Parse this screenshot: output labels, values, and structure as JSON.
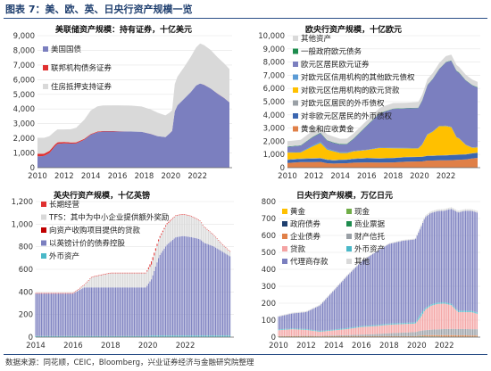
{
  "figure_title": "图表 7：美、欧、英、日央行资产规模一览",
  "source": "数据来源：同花顺，CEIC，Bloomberg，兴业证券经济与金融研究院整理",
  "chart_data": [
    {
      "id": "fed",
      "type": "area",
      "stacked": true,
      "title": "美联储资产规模：持有证券，十亿美元",
      "xlim": [
        2010,
        2024.6
      ],
      "ylim": [
        0,
        9000
      ],
      "x_ticks": [
        2010,
        2012,
        2014,
        2016,
        2018,
        2020,
        2022
      ],
      "y_ticks": [
        0,
        1000,
        2000,
        3000,
        4000,
        5000,
        6000,
        7000,
        8000,
        9000
      ],
      "legend_position": "top-left",
      "x": [
        2010.0,
        2010.25,
        2010.5,
        2010.9,
        2011.3,
        2011.5,
        2012.0,
        2012.5,
        2012.9,
        2013.5,
        2014.0,
        2014.5,
        2014.9,
        2016.0,
        2017.0,
        2017.8,
        2018.5,
        2019.0,
        2019.6,
        2019.9,
        2020.1,
        2020.3,
        2020.5,
        2021.0,
        2021.5,
        2021.9,
        2022.2,
        2022.5,
        2023.0,
        2023.5,
        2024.0,
        2024.4
      ],
      "series": [
        {
          "name": "美国国债",
          "color": "#7b7fbf",
          "values": [
            780,
            780,
            800,
            1000,
            1450,
            1620,
            1660,
            1640,
            1650,
            1900,
            2250,
            2420,
            2460,
            2460,
            2460,
            2450,
            2300,
            2150,
            2080,
            2320,
            2500,
            3850,
            4250,
            4700,
            5150,
            5600,
            5740,
            5650,
            5400,
            5050,
            4750,
            4450
          ]
        },
        {
          "name": "联邦机构债务证券",
          "color": "#e03030",
          "values": [
            160,
            160,
            155,
            150,
            120,
            110,
            100,
            80,
            75,
            60,
            45,
            40,
            38,
            30,
            5,
            3,
            3,
            3,
            3,
            3,
            3,
            3,
            3,
            3,
            3,
            3,
            3,
            3,
            3,
            3,
            3,
            3
          ]
        },
        {
          "name": "住房抵押支持证券",
          "color": "#d9d9d9",
          "values": [
            1100,
            1100,
            1080,
            1000,
            900,
            880,
            850,
            900,
            1000,
            1300,
            1600,
            1720,
            1740,
            1760,
            1770,
            1720,
            1660,
            1600,
            1480,
            1420,
            1400,
            1850,
            1950,
            2150,
            2400,
            2600,
            2720,
            2700,
            2620,
            2480,
            2360,
            2270
          ]
        }
      ]
    },
    {
      "id": "ecb",
      "type": "area",
      "stacked": true,
      "title": "欧央行资产规模，十亿欧元",
      "xlim": [
        2010,
        2024.6
      ],
      "ylim": [
        0,
        10000
      ],
      "x_ticks": [
        2010,
        2012,
        2014,
        2016,
        2018,
        2020,
        2022
      ],
      "y_ticks": [
        0,
        1000,
        2000,
        3000,
        4000,
        5000,
        6000,
        7000,
        8000,
        9000,
        10000
      ],
      "legend_position": "top-left",
      "x": [
        2010.0,
        2011.0,
        2011.9,
        2012.5,
        2013.0,
        2013.5,
        2014.0,
        2014.5,
        2015.0,
        2016.0,
        2017.0,
        2018.0,
        2019.0,
        2019.9,
        2020.2,
        2020.6,
        2021.0,
        2021.5,
        2022.0,
        2022.4,
        2022.8,
        2023.0,
        2023.5,
        2024.0,
        2024.4
      ],
      "series": [
        {
          "name": "黄金和应收黄金",
          "color": "#e08048",
          "values": [
            360,
            420,
            420,
            440,
            340,
            310,
            330,
            340,
            380,
            400,
            390,
            400,
            460,
            470,
            470,
            540,
            540,
            560,
            560,
            570,
            590,
            600,
            620,
            700,
            740
          ]
        },
        {
          "name": "对非欧元区居民的外币债权",
          "color": "#3b66b0",
          "values": [
            230,
            240,
            260,
            260,
            250,
            240,
            250,
            260,
            280,
            310,
            300,
            320,
            340,
            340,
            350,
            350,
            360,
            360,
            370,
            380,
            380,
            380,
            380,
            380,
            380
          ]
        },
        {
          "name": "对欧元区居民的外币债权",
          "color": "#9aa0a6",
          "values": [
            30,
            30,
            40,
            40,
            30,
            30,
            30,
            30,
            30,
            30,
            30,
            20,
            20,
            20,
            20,
            20,
            20,
            20,
            20,
            20,
            20,
            20,
            20,
            20,
            20
          ]
        },
        {
          "name": "对欧元区信用机构的欧元贷款",
          "color": "#ffc000",
          "values": [
            520,
            460,
            880,
            1130,
            750,
            650,
            500,
            480,
            540,
            590,
            770,
            730,
            640,
            620,
            900,
            1600,
            1800,
            2200,
            2200,
            2100,
            1300,
            1200,
            700,
            400,
            400
          ]
        },
        {
          "name": "对欧元区信用机构的其他欧元债权",
          "color": "#5b9bd5",
          "values": [
            30,
            40,
            80,
            100,
            80,
            70,
            60,
            50,
            40,
            30,
            30,
            30,
            30,
            30,
            30,
            30,
            30,
            30,
            30,
            30,
            30,
            30,
            30,
            30,
            30
          ]
        },
        {
          "name": "欧元区居民欧元证券",
          "color": "#7b7fbf",
          "values": [
            400,
            470,
            620,
            650,
            600,
            580,
            590,
            620,
            900,
            1800,
            2600,
            2950,
            3000,
            3040,
            3300,
            3700,
            3950,
            4300,
            4800,
            5000,
            5000,
            4950,
            4850,
            4700,
            4500
          ]
        },
        {
          "name": "一般政府欧元债务",
          "color": "#1e8c4e",
          "values": [
            30,
            30,
            30,
            30,
            30,
            30,
            30,
            30,
            30,
            30,
            30,
            30,
            30,
            30,
            30,
            30,
            30,
            30,
            30,
            30,
            30,
            30,
            30,
            30,
            30
          ]
        },
        {
          "name": "其他资产",
          "color": "#d9d9d9",
          "values": [
            400,
            420,
            450,
            450,
            450,
            440,
            400,
            390,
            380,
            380,
            400,
            420,
            400,
            420,
            430,
            430,
            430,
            430,
            440,
            440,
            430,
            420,
            420,
            410,
            400
          ]
        }
      ]
    },
    {
      "id": "boe",
      "type": "bar",
      "stacked": true,
      "title": "英央行资产规模，十亿英镑",
      "xlim": [
        2014,
        2024.6
      ],
      "ylim": [
        0,
        1200
      ],
      "x_ticks": [
        2014,
        2016,
        2018,
        2020,
        2022
      ],
      "y_ticks": [
        0,
        200,
        400,
        600,
        800,
        1000,
        1200
      ],
      "legend_position": "top-left",
      "x": [
        2014.0,
        2015.0,
        2016.0,
        2016.6,
        2017.0,
        2018.0,
        2019.0,
        2019.9,
        2020.2,
        2020.6,
        2021.0,
        2021.5,
        2021.9,
        2022.3,
        2022.6,
        2022.8,
        2023.0,
        2023.5,
        2024.0,
        2024.4
      ],
      "series": [
        {
          "name": "外币资产",
          "color": "#4ab8c8",
          "values": [
            10,
            10,
            10,
            10,
            10,
            10,
            10,
            10,
            15,
            15,
            15,
            15,
            15,
            15,
            15,
            15,
            15,
            15,
            15,
            15
          ]
        },
        {
          "name": "以英镑计价的债券控股",
          "color": "#7b7fbf",
          "values": [
            375,
            375,
            375,
            430,
            430,
            430,
            430,
            430,
            500,
            700,
            800,
            870,
            880,
            870,
            860,
            850,
            820,
            790,
            740,
            700
          ]
        },
        {
          "name": "向资产收购项目提供的贷款",
          "color": "#c00000",
          "values": [
            0,
            0,
            0,
            0,
            0,
            0,
            0,
            0,
            0,
            0,
            0,
            0,
            0,
            0,
            0,
            0,
            0,
            0,
            0,
            0
          ]
        },
        {
          "name": "TFS：其中为中小企业提供额外奖励",
          "color": "#d9d9d9",
          "values": [
            0,
            0,
            0,
            20,
            90,
            125,
            125,
            125,
            130,
            150,
            180,
            190,
            190,
            185,
            170,
            160,
            140,
            100,
            60,
            40
          ]
        },
        {
          "name": "长期经营",
          "color": "#e03030",
          "values": [
            5,
            5,
            5,
            5,
            5,
            5,
            5,
            5,
            30,
            15,
            10,
            5,
            5,
            5,
            5,
            5,
            5,
            5,
            5,
            5
          ]
        }
      ]
    },
    {
      "id": "boj",
      "type": "bar",
      "stacked": true,
      "title": "日央行资产规模，万亿日元",
      "xlim": [
        2010,
        2024.6
      ],
      "ylim": [
        0,
        800
      ],
      "x_ticks": [
        2010,
        2012,
        2014,
        2016,
        2018,
        2020,
        2022
      ],
      "y_ticks": [
        0,
        100,
        200,
        300,
        400,
        500,
        600,
        700,
        800
      ],
      "legend_position": "top-left",
      "x": [
        2010.0,
        2011.0,
        2012.0,
        2013.0,
        2014.0,
        2015.0,
        2016.0,
        2017.0,
        2018.0,
        2019.0,
        2019.9,
        2020.3,
        2020.6,
        2021.0,
        2021.5,
        2022.0,
        2022.5,
        2023.0,
        2023.5,
        2024.0,
        2024.4
      ],
      "series": [
        {
          "name": "黄金",
          "color": "#ffc000",
          "values": [
            0.4,
            0.4,
            0.4,
            0.4,
            0.4,
            0.4,
            0.4,
            0.4,
            0.4,
            0.4,
            0.4,
            0.4,
            0.4,
            0.4,
            0.4,
            0.4,
            0.4,
            0.4,
            0.4,
            0.4,
            0.4
          ]
        },
        {
          "name": "现金",
          "color": "#70ad47",
          "values": [
            0.3,
            0.3,
            0.3,
            0.3,
            0.3,
            0.3,
            0.3,
            0.3,
            0.3,
            0.3,
            0.3,
            0.3,
            0.3,
            0.3,
            0.3,
            0.3,
            0.3,
            0.3,
            0.3,
            0.3,
            0.3
          ]
        },
        {
          "name": "政府债券",
          "color": "#1f3f6f",
          "values": [
            0,
            0,
            0,
            0,
            0,
            0,
            0,
            0,
            0,
            0,
            0,
            0,
            0,
            0,
            0,
            0,
            0,
            0,
            0,
            0,
            0
          ]
        },
        {
          "name": "商业票据",
          "color": "#1e8c4e",
          "values": [
            2,
            2,
            2,
            1,
            2,
            2,
            2,
            2,
            2,
            2,
            2,
            4,
            3,
            3,
            3,
            2,
            2,
            2,
            2,
            2,
            2
          ]
        },
        {
          "name": "企业债券",
          "color": "#e08048",
          "values": [
            2,
            3,
            3,
            3,
            3,
            3,
            3,
            3,
            3,
            3,
            3,
            5,
            7,
            8,
            8,
            9,
            9,
            8,
            8,
            7,
            7
          ]
        },
        {
          "name": "财产信托",
          "color": "#9aa0a6",
          "values": [
            1,
            1,
            2,
            2,
            4,
            6,
            9,
            12,
            17,
            21,
            24,
            28,
            30,
            32,
            34,
            36,
            37,
            37,
            37,
            37,
            37
          ]
        },
        {
          "name": "贷款",
          "color": "#f4a3a3",
          "values": [
            35,
            40,
            35,
            25,
            30,
            36,
            45,
            47,
            50,
            50,
            50,
            80,
            120,
            140,
            150,
            150,
            140,
            100,
            100,
            100,
            90
          ]
        },
        {
          "name": "外币资产",
          "color": "#4ab8c8",
          "values": [
            5,
            5,
            5,
            5,
            5,
            6,
            6,
            6,
            7,
            7,
            7,
            20,
            10,
            8,
            8,
            8,
            8,
            8,
            8,
            8,
            8
          ]
        },
        {
          "name": "代理商存款",
          "color": "#7b7fbf",
          "values": [
            75,
            88,
            100,
            150,
            230,
            310,
            380,
            430,
            470,
            485,
            490,
            510,
            535,
            540,
            540,
            540,
            560,
            580,
            590,
            590,
            590
          ]
        },
        {
          "name": "其他",
          "color": "#d9d9d9",
          "values": [
            5,
            5,
            5,
            5,
            5,
            5,
            5,
            5,
            5,
            5,
            5,
            10,
            10,
            10,
            10,
            10,
            10,
            10,
            10,
            10,
            10
          ]
        }
      ]
    }
  ]
}
